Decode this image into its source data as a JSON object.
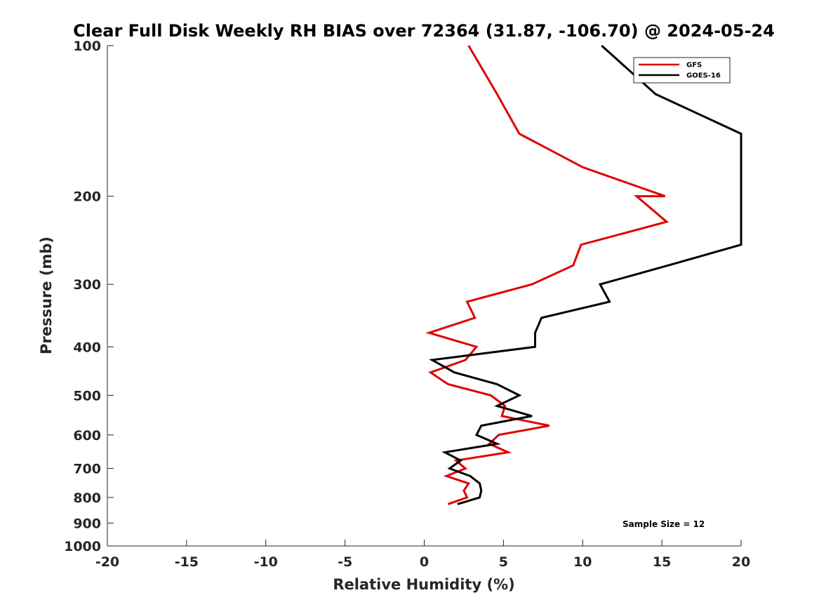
{
  "chart_data": {
    "type": "line",
    "title": "Clear Full Disk Weekly RH BIAS over 72364 (31.87, -106.70) @ 2024-05-24",
    "xlabel": "Relative Humidity (%)",
    "ylabel": "Pressure (mb)",
    "xlim": [
      -20,
      20
    ],
    "ylim": [
      100,
      1000
    ],
    "y_scale": "log",
    "y_reversed": true,
    "x_ticks": [
      "-20",
      "-15",
      "-10",
      "-5",
      "0",
      "5",
      "10",
      "15",
      "20"
    ],
    "y_ticks": [
      "100",
      "200",
      "300",
      "400",
      "500",
      "600",
      "700",
      "800",
      "900",
      "1000"
    ],
    "legend_position": "top-right",
    "annotation": "Sample Size = 12",
    "series": [
      {
        "name": "GFS",
        "color": "#e00000",
        "points": [
          {
            "x": 2.8,
            "p": 100
          },
          {
            "x": 4.6,
            "p": 125
          },
          {
            "x": 6.0,
            "p": 150
          },
          {
            "x": 10.0,
            "p": 175
          },
          {
            "x": 15.2,
            "p": 200
          },
          {
            "x": 13.4,
            "p": 200
          },
          {
            "x": 15.3,
            "p": 225
          },
          {
            "x": 9.9,
            "p": 250
          },
          {
            "x": 9.4,
            "p": 275
          },
          {
            "x": 6.8,
            "p": 300
          },
          {
            "x": 2.7,
            "p": 325
          },
          {
            "x": 3.2,
            "p": 350
          },
          {
            "x": 0.3,
            "p": 375
          },
          {
            "x": 3.3,
            "p": 400
          },
          {
            "x": 2.6,
            "p": 425
          },
          {
            "x": 0.4,
            "p": 450
          },
          {
            "x": 1.5,
            "p": 475
          },
          {
            "x": 4.2,
            "p": 500
          },
          {
            "x": 5.1,
            "p": 525
          },
          {
            "x": 4.9,
            "p": 550
          },
          {
            "x": 7.9,
            "p": 575
          },
          {
            "x": 4.7,
            "p": 600
          },
          {
            "x": 4.1,
            "p": 625
          },
          {
            "x": 5.3,
            "p": 650
          },
          {
            "x": 2.0,
            "p": 675
          },
          {
            "x": 2.6,
            "p": 700
          },
          {
            "x": 1.4,
            "p": 725
          },
          {
            "x": 2.8,
            "p": 750
          },
          {
            "x": 2.5,
            "p": 775
          },
          {
            "x": 2.7,
            "p": 800
          },
          {
            "x": 1.5,
            "p": 825
          }
        ]
      },
      {
        "name": "GOES-16",
        "color": "#000000",
        "points": [
          {
            "x": 11.2,
            "p": 100
          },
          {
            "x": 14.6,
            "p": 125
          },
          {
            "x": 20.0,
            "p": 150
          },
          {
            "x": 20.0,
            "p": 250
          },
          {
            "x": 15.4,
            "p": 275
          },
          {
            "x": 11.1,
            "p": 300
          },
          {
            "x": 11.7,
            "p": 325
          },
          {
            "x": 7.4,
            "p": 350
          },
          {
            "x": 7.0,
            "p": 375
          },
          {
            "x": 7.0,
            "p": 400
          },
          {
            "x": 0.5,
            "p": 425
          },
          {
            "x": 1.9,
            "p": 450
          },
          {
            "x": 4.6,
            "p": 475
          },
          {
            "x": 6.0,
            "p": 500
          },
          {
            "x": 4.6,
            "p": 525
          },
          {
            "x": 6.8,
            "p": 550
          },
          {
            "x": 3.6,
            "p": 575
          },
          {
            "x": 3.3,
            "p": 600
          },
          {
            "x": 4.6,
            "p": 625
          },
          {
            "x": 1.3,
            "p": 650
          },
          {
            "x": 2.3,
            "p": 675
          },
          {
            "x": 1.6,
            "p": 700
          },
          {
            "x": 2.9,
            "p": 725
          },
          {
            "x": 3.5,
            "p": 750
          },
          {
            "x": 3.6,
            "p": 775
          },
          {
            "x": 3.5,
            "p": 800
          },
          {
            "x": 2.1,
            "p": 825
          }
        ]
      }
    ]
  }
}
